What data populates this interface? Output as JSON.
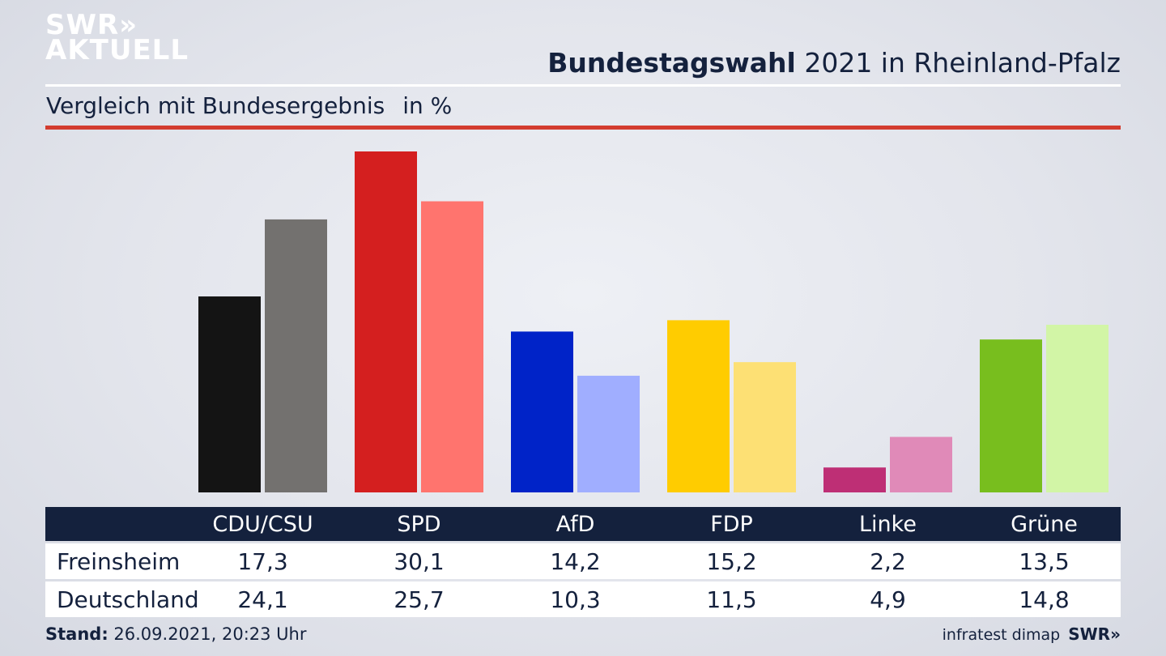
{
  "brand": {
    "logo_line1": "SWR",
    "logo_line1_chevrons": "»",
    "logo_line2": "AKTUELL"
  },
  "header": {
    "title_bold": "Bundestagswahl",
    "title_rest": " 2021 in Rheinland-Pfalz",
    "subtitle": "Vergleich mit Bundesergebnis",
    "unit": "in %"
  },
  "colors": {
    "rule_red": "#d33c2f",
    "table_header": "#14213d",
    "parties_dark": [
      "#141414",
      "#d41f1f",
      "#0023c8",
      "#ffcc00",
      "#be2f75",
      "#78be1e"
    ],
    "parties_light": [
      "#73716f",
      "#ff746e",
      "#a0aeff",
      "#fde074",
      "#e08ab8",
      "#d2f5a6"
    ]
  },
  "chart_data": {
    "type": "bar",
    "categories": [
      "CDU/CSU",
      "SPD",
      "AfD",
      "FDP",
      "Linke",
      "Grüne"
    ],
    "series": [
      {
        "name": "Freinsheim",
        "values": [
          17.3,
          30.1,
          14.2,
          15.2,
          2.2,
          13.5
        ]
      },
      {
        "name": "Deutschland",
        "values": [
          24.1,
          25.7,
          10.3,
          11.5,
          4.9,
          14.8
        ]
      }
    ],
    "ylim": [
      0,
      30.1
    ],
    "grid": false,
    "legend": "none"
  },
  "table": {
    "rows": [
      {
        "label": "Freinsheim",
        "values": [
          "17,3",
          "30,1",
          "14,2",
          "15,2",
          "2,2",
          "13,5"
        ]
      },
      {
        "label": "Deutschland",
        "values": [
          "24,1",
          "25,7",
          "10,3",
          "11,5",
          "4,9",
          "14,8"
        ]
      }
    ]
  },
  "footer": {
    "stand_label": "Stand:",
    "stand_value": " 26.09.2021, 20:23 Uhr",
    "source": "infratest dimap",
    "source_logo": "SWR»"
  }
}
